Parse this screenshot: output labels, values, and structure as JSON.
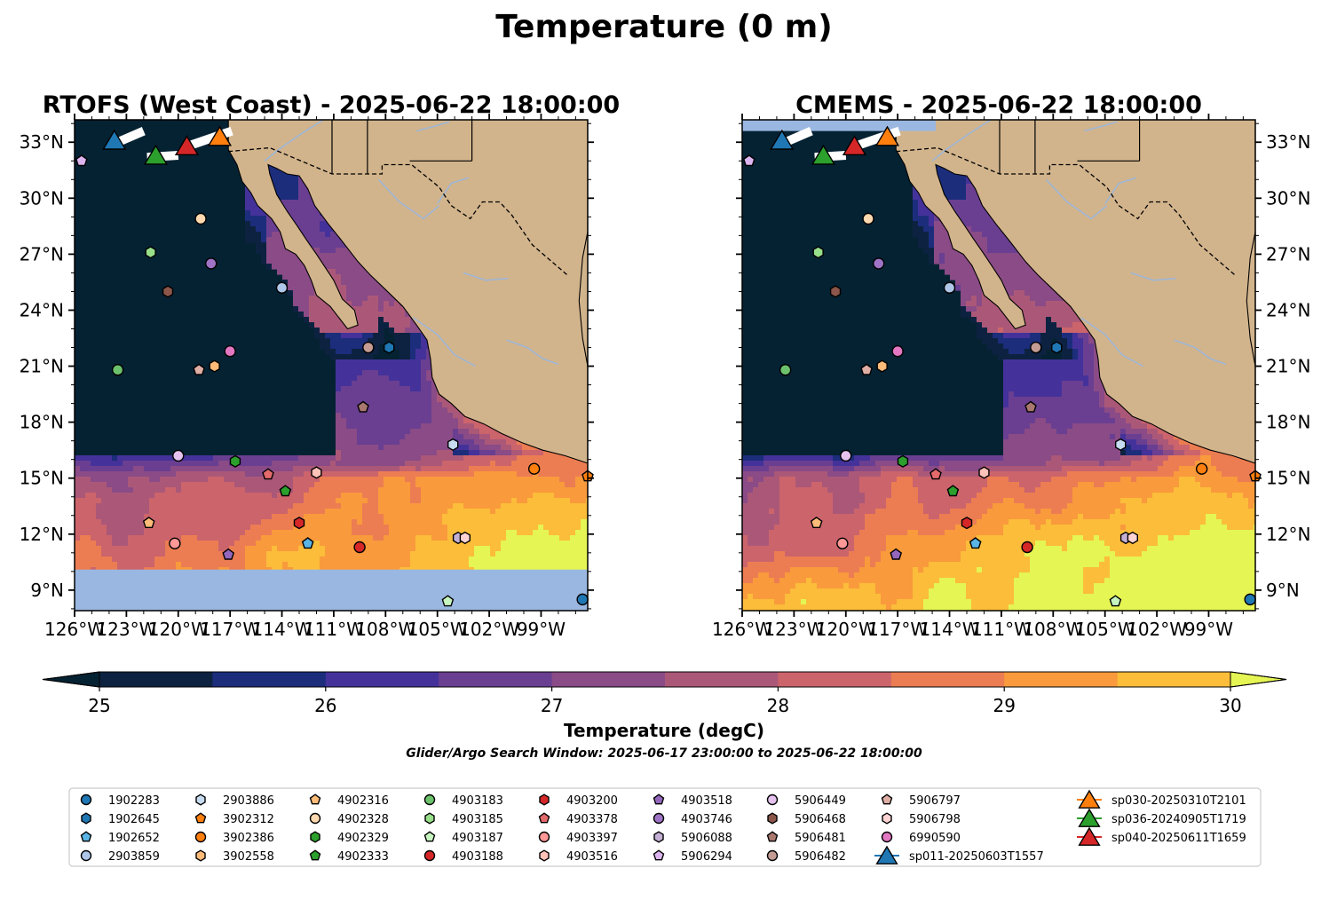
{
  "figure": {
    "suptitle": "Temperature (0 m)",
    "window_text": "Glider/Argo Search Window: 2025-06-17 23:00:00 to 2025-06-22 18:00:00"
  },
  "chart_data": [
    {
      "type": "heatmap",
      "title": "RTOFS (West Coast) - 2025-06-22 18:00:00",
      "xlim": [
        -126,
        -96.3
      ],
      "ylim": [
        7.9,
        34.2
      ],
      "x_tick_labels": [
        "126°W",
        "123°W",
        "120°W",
        "117°W",
        "114°W",
        "111°W",
        "108°W",
        "105°W",
        "102°W",
        "99°W"
      ],
      "y_tick_labels": [
        "9°N",
        "12°N",
        "15°N",
        "18°N",
        "21°N",
        "24°N",
        "27°N",
        "30°N",
        "33°N"
      ],
      "no_data_band_below_lat": 10.1
    },
    {
      "type": "heatmap",
      "title": "CMEMS - 2025-06-22 18:00:00",
      "xlim": [
        -126,
        -96.3
      ],
      "ylim": [
        7.9,
        34.2
      ],
      "x_tick_labels": [
        "126°W",
        "123°W",
        "120°W",
        "117°W",
        "114°W",
        "111°W",
        "108°W",
        "105°W",
        "102°W",
        "99°W"
      ],
      "y_tick_labels": [
        "9°N",
        "12°N",
        "15°N",
        "18°N",
        "21°N",
        "24°N",
        "27°N",
        "30°N",
        "33°N"
      ]
    }
  ],
  "colorbar": {
    "label": "Temperature (degC)",
    "min": 25,
    "max": 30,
    "step": 0.5,
    "extend": "both",
    "tick_labels": [
      "25",
      "26",
      "27",
      "28",
      "29",
      "30"
    ],
    "colors": [
      "#0d2240",
      "#1c2d7c",
      "#44329a",
      "#6a3f91",
      "#8a4b86",
      "#ab5878",
      "#cc646c",
      "#ec7d52",
      "#f99a3c",
      "#fbbd3a"
    ],
    "under_color": "#052233",
    "over_color": "#e5f553",
    "land_color": "#d2b48c",
    "no_data_color": "#99b7e0"
  },
  "floats": [
    {
      "id": "1902283",
      "lon": -96.6,
      "lat": 8.5,
      "color": "#1f77b4",
      "marker": "circle"
    },
    {
      "id": "1902645",
      "lon": -107.8,
      "lat": 22.0,
      "color": "#1f77b4",
      "marker": "hexagon"
    },
    {
      "id": "1902652",
      "lon": -112.5,
      "lat": 11.5,
      "color": "#5ab4e5",
      "marker": "pentagon"
    },
    {
      "id": "2903859",
      "lon": -114.0,
      "lat": 25.2,
      "color": "#aec7e8",
      "marker": "circle"
    },
    {
      "id": "2903886",
      "lon": -104.1,
      "lat": 16.8,
      "color": "#c6dbef",
      "marker": "hexagon"
    },
    {
      "id": "3902312",
      "lon": -96.3,
      "lat": 15.1,
      "color": "#ff7f0e",
      "marker": "pentagon"
    },
    {
      "id": "3902386",
      "lon": -99.4,
      "lat": 15.5,
      "color": "#ff7f0e",
      "marker": "circle"
    },
    {
      "id": "3902558",
      "lon": -117.9,
      "lat": 21.0,
      "color": "#ffbb78",
      "marker": "hexagon"
    },
    {
      "id": "4902316",
      "lon": -121.7,
      "lat": 12.6,
      "color": "#ffbb78",
      "marker": "pentagon"
    },
    {
      "id": "4902328",
      "lon": -118.7,
      "lat": 28.9,
      "color": "#ffd9b0",
      "marker": "circle"
    },
    {
      "id": "4902329",
      "lon": -116.7,
      "lat": 15.9,
      "color": "#2ca02c",
      "marker": "hexagon"
    },
    {
      "id": "4902333",
      "lon": -113.8,
      "lat": 14.3,
      "color": "#2ca02c",
      "marker": "pentagon"
    },
    {
      "id": "4903183",
      "lon": -123.5,
      "lat": 20.8,
      "color": "#6cc26c",
      "marker": "circle"
    },
    {
      "id": "4903185",
      "lon": -121.6,
      "lat": 27.1,
      "color": "#98df8a",
      "marker": "hexagon"
    },
    {
      "id": "4903187",
      "lon": -104.4,
      "lat": 8.4,
      "color": "#c7f5c0",
      "marker": "pentagon"
    },
    {
      "id": "4903188",
      "lon": -109.5,
      "lat": 11.3,
      "color": "#d62728",
      "marker": "circle"
    },
    {
      "id": "4903200",
      "lon": -113.0,
      "lat": 12.6,
      "color": "#d62728",
      "marker": "hexagon"
    },
    {
      "id": "4903378",
      "lon": -114.8,
      "lat": 15.2,
      "color": "#e46a6b",
      "marker": "pentagon"
    },
    {
      "id": "4903397",
      "lon": -120.2,
      "lat": 11.5,
      "color": "#ff9896",
      "marker": "circle"
    },
    {
      "id": "4903516",
      "lon": -112.0,
      "lat": 15.3,
      "color": "#ffc2b8",
      "marker": "hexagon"
    },
    {
      "id": "4903518",
      "lon": -117.1,
      "lat": 10.9,
      "color": "#9467bd",
      "marker": "pentagon"
    },
    {
      "id": "4903746",
      "lon": -118.1,
      "lat": 26.5,
      "color": "#9f74c6",
      "marker": "circle"
    },
    {
      "id": "5906088",
      "lon": -103.8,
      "lat": 11.8,
      "color": "#c5b0d5",
      "marker": "hexagon"
    },
    {
      "id": "5906294",
      "lon": -125.6,
      "lat": 32.0,
      "color": "#dcb5f0",
      "marker": "pentagon"
    },
    {
      "id": "5906449",
      "lon": -120.0,
      "lat": 16.2,
      "color": "#e6c3ef",
      "marker": "circle"
    },
    {
      "id": "5906468",
      "lon": -120.6,
      "lat": 25.0,
      "color": "#8c564b",
      "marker": "hexagon"
    },
    {
      "id": "5906481",
      "lon": -109.3,
      "lat": 18.8,
      "color": "#a9786e",
      "marker": "pentagon"
    },
    {
      "id": "5906482",
      "lon": -109.0,
      "lat": 22.0,
      "color": "#c49c94",
      "marker": "circle"
    },
    {
      "id": "5906797",
      "lon": -118.8,
      "lat": 20.8,
      "color": "#dfaea4",
      "marker": "pentagon"
    },
    {
      "id": "5906798",
      "lon": -103.4,
      "lat": 11.8,
      "color": "#ffd3d3",
      "marker": "hexagon"
    },
    {
      "id": "6990590",
      "lon": -117.0,
      "lat": 21.8,
      "color": "#e377c2",
      "marker": "circle"
    }
  ],
  "gliders": [
    {
      "id": "sp011-20250603T1557",
      "lon": -123.7,
      "lat": 33.0,
      "color": "#1f77b4"
    },
    {
      "id": "sp030-20250310T2101",
      "lon": -117.6,
      "lat": 33.2,
      "color": "#ff7f0e"
    },
    {
      "id": "sp036-20240905T1719",
      "lon": -121.3,
      "lat": 32.2,
      "color": "#2ca02c"
    },
    {
      "id": "sp040-20250611T1659",
      "lon": -119.5,
      "lat": 32.7,
      "color": "#d62728"
    }
  ],
  "legend": {
    "float_columns": [
      [
        "1902283",
        "1902645",
        "1902652",
        "2903859"
      ],
      [
        "2903886",
        "3902312",
        "3902386",
        "3902558"
      ],
      [
        "4902316",
        "4902328",
        "4902329",
        "4902333"
      ],
      [
        "4903183",
        "4903185",
        "4903187",
        "4903188"
      ],
      [
        "4903200",
        "4903378",
        "4903397",
        "4903516"
      ],
      [
        "4903518",
        "4903746",
        "5906088",
        "5906294"
      ],
      [
        "5906449",
        "5906468",
        "5906481",
        "5906482"
      ],
      [
        "5906797",
        "5906798",
        "6990590"
      ]
    ],
    "glider_in_float_column": "sp011-20250603T1557",
    "glider_column": [
      "sp030-20250310T2101",
      "sp036-20240905T1719",
      "sp040-20250611T1659"
    ]
  }
}
